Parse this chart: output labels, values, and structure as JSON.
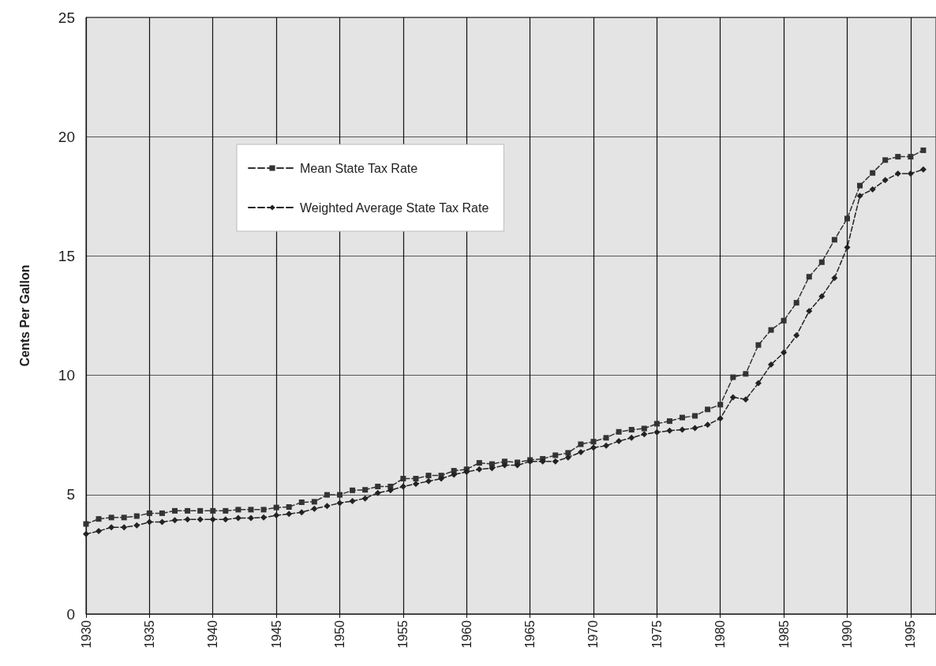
{
  "chart_data": {
    "type": "line",
    "ylabel": "Cents Per Gallon",
    "x": [
      1930,
      1931,
      1932,
      1933,
      1934,
      1935,
      1936,
      1937,
      1938,
      1939,
      1940,
      1941,
      1942,
      1943,
      1944,
      1945,
      1946,
      1947,
      1948,
      1949,
      1950,
      1951,
      1952,
      1953,
      1954,
      1955,
      1956,
      1957,
      1958,
      1959,
      1960,
      1961,
      1962,
      1963,
      1964,
      1965,
      1966,
      1967,
      1968,
      1969,
      1970,
      1971,
      1972,
      1973,
      1974,
      1975,
      1976,
      1977,
      1978,
      1979,
      1980,
      1981,
      1982,
      1983,
      1984,
      1985,
      1986,
      1987,
      1988,
      1989,
      1990,
      1991,
      1992,
      1993,
      1994,
      1995,
      1996
    ],
    "series": [
      {
        "name": "Mean State Tax Rate",
        "color": "#333333",
        "marker": "square",
        "values": [
          3.77,
          3.98,
          4.04,
          4.04,
          4.1,
          4.22,
          4.22,
          4.32,
          4.32,
          4.32,
          4.32,
          4.32,
          4.37,
          4.37,
          4.37,
          4.46,
          4.48,
          4.68,
          4.7,
          4.99,
          4.99,
          5.18,
          5.2,
          5.34,
          5.34,
          5.67,
          5.67,
          5.8,
          5.8,
          6.0,
          6.06,
          6.33,
          6.28,
          6.39,
          6.35,
          6.45,
          6.5,
          6.65,
          6.75,
          7.11,
          7.22,
          7.38,
          7.63,
          7.72,
          7.77,
          7.97,
          8.08,
          8.23,
          8.3,
          8.57,
          8.77,
          9.92,
          10.06,
          11.27,
          11.9,
          12.29,
          13.04,
          14.13,
          14.74,
          15.68,
          16.57,
          17.95,
          18.48,
          19.02,
          19.16,
          19.16,
          19.43
        ]
      },
      {
        "name": "Weighted Average State Tax Rate",
        "color": "#222222",
        "marker": "diamond",
        "values": [
          3.35,
          3.47,
          3.63,
          3.63,
          3.71,
          3.85,
          3.85,
          3.93,
          3.96,
          3.96,
          3.96,
          3.96,
          4.02,
          4.02,
          4.04,
          4.13,
          4.19,
          4.26,
          4.41,
          4.52,
          4.65,
          4.73,
          4.84,
          5.07,
          5.18,
          5.34,
          5.45,
          5.56,
          5.67,
          5.84,
          5.95,
          6.06,
          6.11,
          6.23,
          6.23,
          6.39,
          6.39,
          6.39,
          6.56,
          6.78,
          6.97,
          7.05,
          7.24,
          7.38,
          7.53,
          7.61,
          7.68,
          7.72,
          7.79,
          7.93,
          8.19,
          9.08,
          8.99,
          9.67,
          10.45,
          10.95,
          11.67,
          12.69,
          13.31,
          14.08,
          15.36,
          17.52,
          17.79,
          18.18,
          18.45,
          18.45,
          18.63
        ]
      }
    ],
    "xlim": [
      1930,
      1997
    ],
    "xticks": [
      1930,
      1935,
      1940,
      1945,
      1950,
      1955,
      1960,
      1965,
      1970,
      1975,
      1980,
      1985,
      1990,
      1995
    ],
    "ylim": [
      0,
      25
    ],
    "yticks": [
      0,
      5,
      10,
      15,
      20,
      25
    ],
    "grid": true,
    "legend": "top left",
    "line_style": "dashed"
  }
}
